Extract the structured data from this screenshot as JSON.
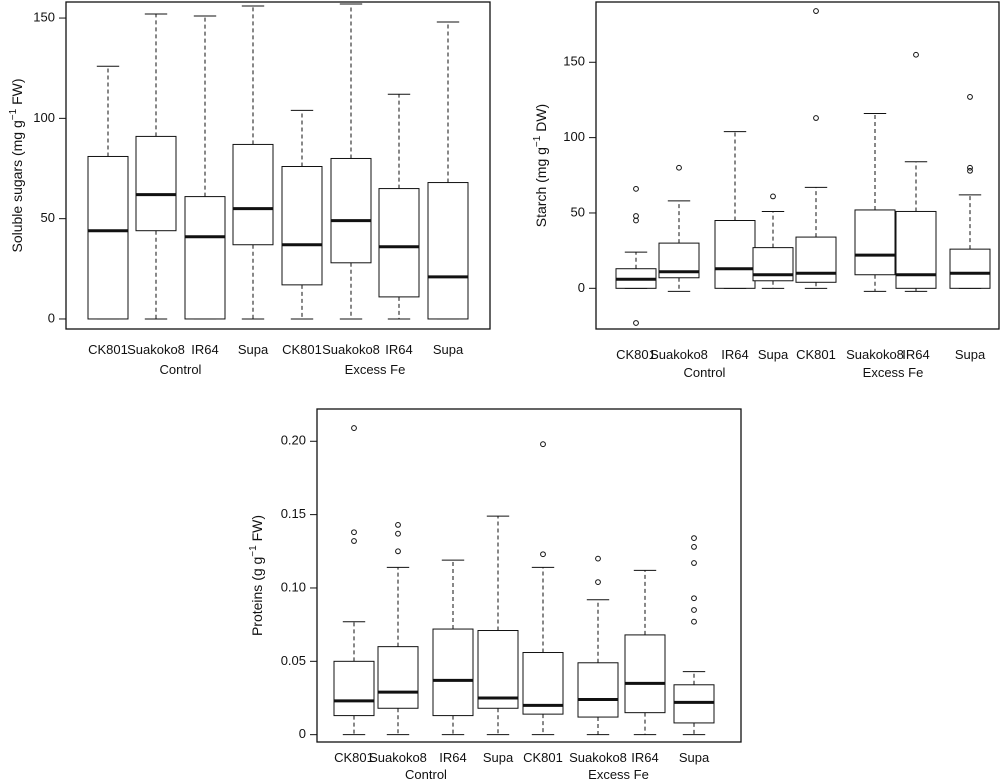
{
  "chart_data": [
    {
      "type": "box",
      "ylabel_main": "Soluble sugars (mg g",
      "ylabel_sup": "−1",
      "ylabel_tail": " FW)",
      "ylim": [
        -5,
        158
      ],
      "yticks": [
        0,
        50,
        100,
        150
      ],
      "ytick_labels": [
        "0",
        "50",
        "100",
        "150"
      ],
      "categories": [
        "CK801",
        "Suakoko8",
        "IR64",
        "Supa",
        "CK801",
        "Suakoko8",
        "IR64",
        "Supa"
      ],
      "groups": [
        {
          "label": "Control",
          "span": [
            0,
            3
          ]
        },
        {
          "label": "Excess Fe",
          "span": [
            4,
            7
          ]
        }
      ],
      "boxes": [
        {
          "min": 0,
          "q1": 0,
          "median": 44,
          "q3": 81,
          "max": 126,
          "outliers": []
        },
        {
          "min": 0,
          "q1": 44,
          "median": 62,
          "q3": 91,
          "max": 152,
          "outliers": []
        },
        {
          "min": 0,
          "q1": 0,
          "median": 41,
          "q3": 61,
          "max": 151,
          "outliers": []
        },
        {
          "min": 0,
          "q1": 37,
          "median": 55,
          "q3": 87,
          "max": 156,
          "outliers": []
        },
        {
          "min": 0,
          "q1": 17,
          "median": 37,
          "q3": 76,
          "max": 104,
          "outliers": []
        },
        {
          "min": 0,
          "q1": 28,
          "median": 49,
          "q3": 80,
          "max": 157,
          "outliers": []
        },
        {
          "min": 0,
          "q1": 11,
          "median": 36,
          "q3": 65,
          "max": 112,
          "outliers": []
        },
        {
          "min": 0,
          "q1": 0,
          "median": 21,
          "q3": 68,
          "max": 148,
          "outliers": []
        }
      ]
    },
    {
      "type": "box",
      "ylabel_main": "Starch (mg g",
      "ylabel_sup": "−1",
      "ylabel_tail": " DW)",
      "ylim": [
        -27,
        190
      ],
      "yticks": [
        0,
        50,
        100,
        150
      ],
      "ytick_labels": [
        "0",
        "50",
        "100",
        "150"
      ],
      "categories": [
        "CK801",
        "Suakoko8",
        "IR64",
        "Supa",
        "CK801",
        "Suakoko8",
        "IR64",
        "Supa"
      ],
      "groups": [
        {
          "label": "Control",
          "span": [
            0,
            3
          ]
        },
        {
          "label": "Excess Fe",
          "span": [
            4,
            7
          ]
        }
      ],
      "boxes": [
        {
          "min": 0,
          "q1": 0,
          "median": 6,
          "q3": 13,
          "max": 24,
          "outliers": [
            -23,
            45,
            48,
            66
          ]
        },
        {
          "min": -2,
          "q1": 7,
          "median": 11,
          "q3": 30,
          "max": 58,
          "outliers": [
            80
          ]
        },
        {
          "min": 0,
          "q1": 0,
          "median": 13,
          "q3": 45,
          "max": 104,
          "outliers": []
        },
        {
          "min": 0,
          "q1": 5,
          "median": 9,
          "q3": 27,
          "max": 51,
          "outliers": [
            61
          ]
        },
        {
          "min": 0,
          "q1": 4,
          "median": 10,
          "q3": 34,
          "max": 67,
          "outliers": [
            113,
            184
          ]
        },
        {
          "min": -2,
          "q1": 9,
          "median": 22,
          "q3": 52,
          "max": 116,
          "outliers": []
        },
        {
          "min": -2,
          "q1": 0,
          "median": 9,
          "q3": 51,
          "max": 84,
          "outliers": [
            155
          ]
        },
        {
          "min": 0,
          "q1": 0,
          "median": 10,
          "q3": 26,
          "max": 62,
          "outliers": [
            78,
            80,
            127
          ]
        }
      ]
    },
    {
      "type": "box",
      "ylabel_main": "Proteins (g g",
      "ylabel_sup": "−1",
      "ylabel_tail": " FW)",
      "ylim": [
        -0.005,
        0.222
      ],
      "yticks": [
        0,
        0.05,
        0.1,
        0.15,
        0.2
      ],
      "ytick_labels": [
        "0",
        "0.05",
        "0.10",
        "0.15",
        "0.20"
      ],
      "categories": [
        "CK801",
        "Suakoko8",
        "IR64",
        "Supa",
        "CK801",
        "Suakoko8",
        "IR64",
        "Supa"
      ],
      "groups": [
        {
          "label": "Control",
          "span": [
            0,
            3
          ]
        },
        {
          "label": "Excess Fe",
          "span": [
            4,
            7
          ]
        }
      ],
      "boxes": [
        {
          "min": 0,
          "q1": 0.013,
          "median": 0.023,
          "q3": 0.05,
          "max": 0.077,
          "outliers": [
            0.132,
            0.138,
            0.209
          ]
        },
        {
          "min": 0,
          "q1": 0.018,
          "median": 0.029,
          "q3": 0.06,
          "max": 0.114,
          "outliers": [
            0.125,
            0.137,
            0.143
          ]
        },
        {
          "min": 0,
          "q1": 0.013,
          "median": 0.037,
          "q3": 0.072,
          "max": 0.119,
          "outliers": []
        },
        {
          "min": 0,
          "q1": 0.018,
          "median": 0.025,
          "q3": 0.071,
          "max": 0.149,
          "outliers": []
        },
        {
          "min": 0,
          "q1": 0.014,
          "median": 0.02,
          "q3": 0.056,
          "max": 0.114,
          "outliers": [
            0.123,
            0.198
          ]
        },
        {
          "min": 0,
          "q1": 0.012,
          "median": 0.024,
          "q3": 0.049,
          "max": 0.092,
          "outliers": [
            0.104,
            0.12
          ]
        },
        {
          "min": 0,
          "q1": 0.015,
          "median": 0.035,
          "q3": 0.068,
          "max": 0.112,
          "outliers": []
        },
        {
          "min": 0,
          "q1": 0.008,
          "median": 0.022,
          "q3": 0.034,
          "max": 0.043,
          "outliers": [
            0.077,
            0.085,
            0.093,
            0.117,
            0.128,
            0.134
          ]
        }
      ]
    }
  ]
}
